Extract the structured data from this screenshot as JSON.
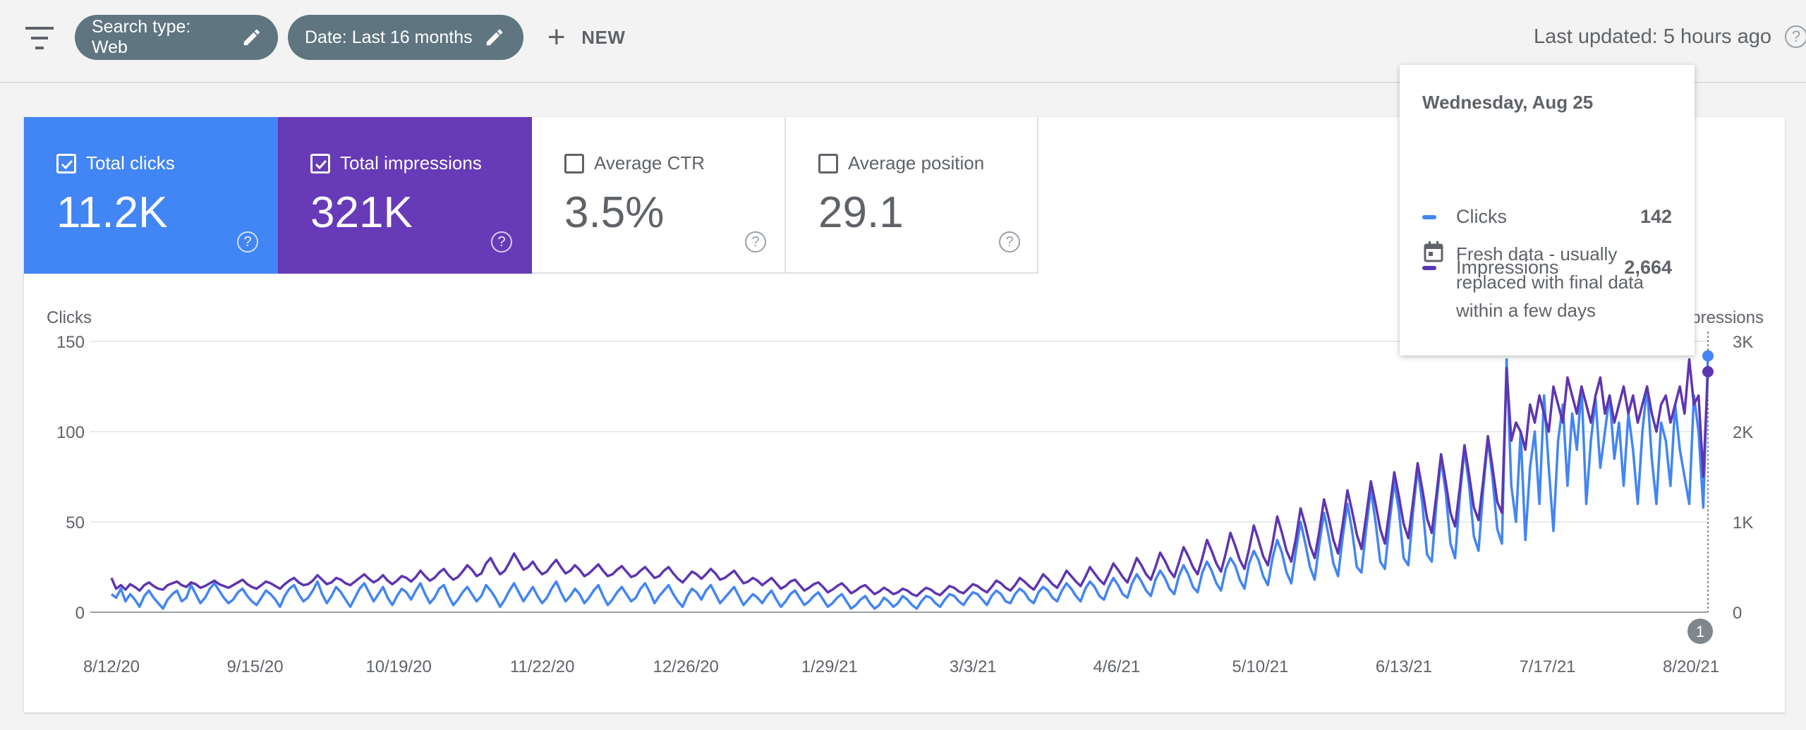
{
  "toolbar": {
    "chips": [
      {
        "label": "Search type: Web",
        "icon": "pencil-icon"
      },
      {
        "label": "Date: Last 16 months",
        "icon": "pencil-icon"
      }
    ],
    "new_label": "NEW",
    "last_updated": "Last updated: 5 hours ago"
  },
  "metrics": [
    {
      "label": "Total clicks",
      "value": "11.2K",
      "checked": true,
      "color": "#4285f4"
    },
    {
      "label": "Total impressions",
      "value": "321K",
      "checked": true,
      "color": "#673ab7"
    },
    {
      "label": "Average CTR",
      "value": "3.5%",
      "checked": false
    },
    {
      "label": "Average position",
      "value": "29.1",
      "checked": false
    }
  ],
  "tooltip": {
    "date": "Wednesday, Aug 25",
    "rows": [
      {
        "name": "Clicks",
        "value": "142",
        "color": "#4285f4"
      },
      {
        "name": "Impressions",
        "value": "2,664",
        "color": "#5e35b1"
      }
    ],
    "note": "Fresh data - usually replaced with final data within a few days"
  },
  "annotation_marker": "1",
  "chart_data": {
    "type": "line",
    "y_left_label": "Clicks",
    "y_right_label": "Impressions",
    "y_left_ticks": [
      "0",
      "50",
      "100",
      "150"
    ],
    "y_right_ticks": [
      "0",
      "1K",
      "2K",
      "3K"
    ],
    "y_left_range": [
      0,
      150
    ],
    "y_right_range": [
      0,
      3000
    ],
    "x_tick_labels": [
      "8/12/20",
      "9/15/20",
      "10/19/20",
      "11/22/20",
      "12/26/20",
      "1/29/21",
      "3/3/21",
      "4/6/21",
      "5/10/21",
      "6/13/21",
      "7/17/21",
      "8/20/21"
    ],
    "x_range": [
      "2020-08-12",
      "2021-08-25"
    ],
    "grid": true,
    "series": [
      {
        "name": "Clicks",
        "axis": "left",
        "color": "#4285f4",
        "values": [
          10,
          8,
          13,
          6,
          10,
          7,
          3,
          9,
          12,
          8,
          5,
          2,
          7,
          10,
          12,
          6,
          8,
          15,
          10,
          5,
          8,
          13,
          16,
          12,
          8,
          5,
          7,
          11,
          13,
          9,
          6,
          4,
          8,
          12,
          10,
          7,
          3,
          9,
          13,
          15,
          10,
          6,
          8,
          12,
          17,
          10,
          5,
          9,
          14,
          11,
          7,
          3,
          8,
          13,
          16,
          11,
          6,
          10,
          14,
          8,
          4,
          9,
          13,
          11,
          7,
          12,
          16,
          10,
          5,
          8,
          13,
          15,
          9,
          4,
          7,
          11,
          14,
          10,
          6,
          9,
          15,
          12,
          8,
          3,
          7,
          12,
          16,
          11,
          6,
          10,
          14,
          9,
          5,
          8,
          13,
          17,
          11,
          6,
          9,
          13,
          10,
          5,
          8,
          12,
          15,
          9,
          4,
          7,
          11,
          14,
          10,
          6,
          8,
          13,
          16,
          11,
          5,
          9,
          12,
          15,
          10,
          6,
          3,
          9,
          13,
          11,
          7,
          12,
          15,
          10,
          5,
          8,
          11,
          14,
          9,
          4,
          7,
          10,
          8,
          5,
          9,
          12,
          7,
          3,
          6,
          10,
          12,
          8,
          4,
          6,
          9,
          11,
          7,
          3,
          5,
          8,
          10,
          6,
          2,
          4,
          7,
          9,
          5,
          2,
          4,
          8,
          6,
          3,
          5,
          9,
          7,
          4,
          2,
          6,
          9,
          8,
          5,
          3,
          7,
          10,
          9,
          6,
          4,
          8,
          11,
          10,
          7,
          4,
          9,
          12,
          10,
          6,
          5,
          10,
          13,
          11,
          7,
          5,
          11,
          14,
          12,
          8,
          6,
          12,
          16,
          13,
          9,
          6,
          13,
          17,
          14,
          9,
          7,
          14,
          19,
          15,
          10,
          8,
          16,
          21,
          17,
          12,
          9,
          18,
          23,
          19,
          13,
          10,
          20,
          26,
          21,
          14,
          11,
          22,
          28,
          23,
          16,
          12,
          24,
          30,
          26,
          18,
          13,
          27,
          34,
          29,
          20,
          15,
          30,
          40,
          33,
          22,
          16,
          34,
          50,
          38,
          25,
          18,
          38,
          55,
          42,
          27,
          20,
          42,
          60,
          45,
          25,
          22,
          46,
          68,
          50,
          28,
          24,
          50,
          72,
          56,
          30,
          26,
          55,
          80,
          60,
          32,
          28,
          60,
          85,
          66,
          38,
          30,
          64,
          90,
          70,
          42,
          34,
          68,
          96,
          74,
          46,
          38,
          140,
          70,
          50,
          100,
          40,
          80,
          100,
          60,
          120,
          80,
          45,
          95,
          115,
          70,
          110,
          90,
          125,
          60,
          95,
          118,
          80,
          100,
          120,
          85,
          105,
          70,
          110,
          90,
          60,
          100,
          125,
          85,
          60,
          105,
          95,
          70,
          115,
          90,
          75,
          60,
          120,
          100,
          58,
          142
        ]
      },
      {
        "name": "Impressions",
        "axis": "right",
        "color": "#5e35b1",
        "values": [
          380,
          260,
          300,
          250,
          310,
          280,
          240,
          300,
          330,
          290,
          260,
          250,
          300,
          320,
          340,
          300,
          280,
          330,
          310,
          270,
          290,
          320,
          350,
          310,
          290,
          270,
          300,
          330,
          360,
          310,
          280,
          260,
          300,
          340,
          320,
          290,
          260,
          310,
          350,
          380,
          330,
          300,
          310,
          350,
          410,
          360,
          310,
          330,
          380,
          360,
          320,
          300,
          340,
          380,
          420,
          370,
          330,
          360,
          410,
          350,
          310,
          350,
          400,
          380,
          340,
          390,
          460,
          400,
          350,
          380,
          440,
          480,
          410,
          360,
          390,
          450,
          520,
          470,
          400,
          430,
          540,
          600,
          500,
          420,
          460,
          550,
          650,
          560,
          470,
          500,
          560,
          480,
          420,
          450,
          520,
          580,
          500,
          430,
          460,
          520,
          470,
          400,
          430,
          480,
          530,
          460,
          400,
          420,
          470,
          510,
          450,
          390,
          410,
          460,
          500,
          440,
          380,
          400,
          460,
          500,
          430,
          370,
          330,
          390,
          450,
          420,
          370,
          420,
          480,
          430,
          360,
          380,
          420,
          460,
          390,
          320,
          340,
          380,
          350,
          300,
          340,
          380,
          320,
          260,
          290,
          340,
          360,
          300,
          240,
          270,
          310,
          330,
          280,
          220,
          250,
          290,
          320,
          270,
          210,
          240,
          280,
          300,
          250,
          200,
          230,
          270,
          240,
          200,
          220,
          260,
          240,
          200,
          180,
          230,
          270,
          250,
          210,
          190,
          240,
          290,
          270,
          230,
          210,
          260,
          310,
          290,
          250,
          220,
          280,
          350,
          320,
          270,
          240,
          300,
          380,
          340,
          290,
          250,
          330,
          420,
          370,
          310,
          270,
          360,
          460,
          400,
          340,
          290,
          390,
          500,
          430,
          360,
          310,
          420,
          540,
          470,
          390,
          330,
          460,
          600,
          520,
          420,
          360,
          500,
          660,
          570,
          460,
          390,
          550,
          720,
          620,
          500,
          420,
          600,
          800,
          680,
          540,
          450,
          650,
          880,
          740,
          580,
          480,
          700,
          960,
          800,
          620,
          520,
          760,
          1060,
          880,
          680,
          560,
          820,
          1150,
          960,
          740,
          600,
          900,
          1250,
          1040,
          800,
          650,
          980,
          1350,
          1120,
          860,
          700,
          1060,
          1450,
          1200,
          920,
          760,
          1140,
          1550,
          1280,
          980,
          820,
          1220,
          1650,
          1360,
          1040,
          880,
          1300,
          1750,
          1440,
          1100,
          950,
          1380,
          1850,
          1520,
          1160,
          1020,
          1460,
          1950,
          1600,
          1220,
          1100,
          2700,
          1900,
          2100,
          2000,
          1800,
          2300,
          2100,
          2400,
          2200,
          2000,
          2500,
          2300,
          2100,
          2600,
          2400,
          2200,
          2500,
          2300,
          2100,
          2400,
          2600,
          2200,
          2400,
          2100,
          2300,
          2500,
          2200,
          2400,
          2100,
          2300,
          2500,
          2200,
          2000,
          2300,
          2400,
          2100,
          2300,
          2500,
          2200,
          2800,
          2300,
          2400,
          1500,
          2664
        ]
      }
    ]
  }
}
